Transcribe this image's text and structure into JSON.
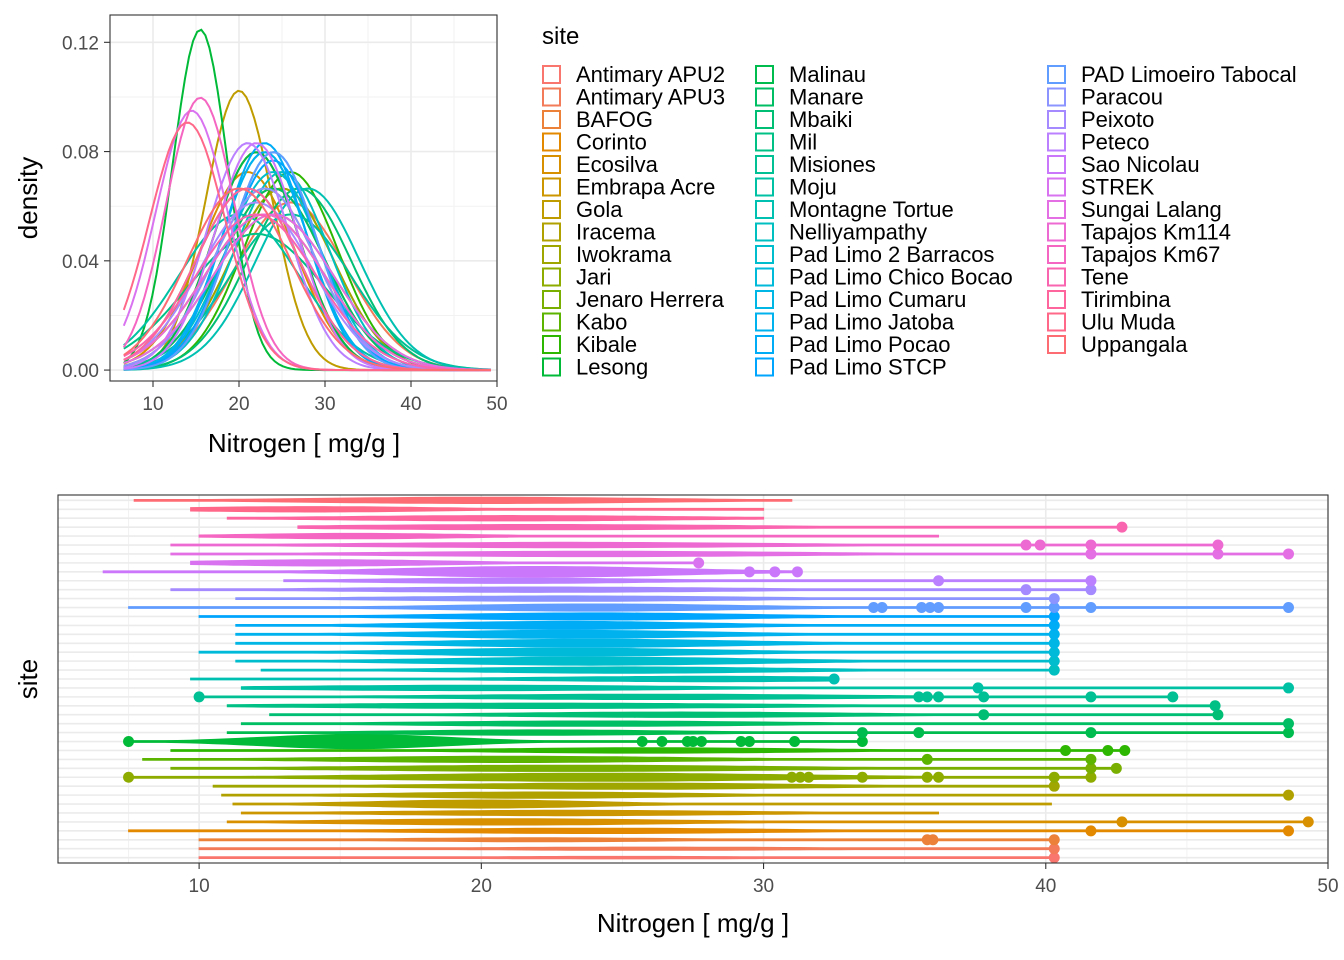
{
  "chart_data": [
    {
      "type": "line",
      "panel": "density",
      "xlabel": "Nitrogen [ mg/g ]",
      "ylabel": "density",
      "xlim": [
        5,
        50
      ],
      "ylim": [
        -0.004,
        0.13
      ],
      "x_ticks": [
        10,
        20,
        30,
        40,
        50
      ],
      "x_tick_labels": [
        "10",
        "20",
        "30",
        "40",
        "50"
      ],
      "y_ticks": [
        0.0,
        0.04,
        0.08,
        0.12
      ],
      "y_tick_labels": [
        "0.00",
        "0.04",
        "0.08",
        "0.12"
      ],
      "grid": true,
      "legend": {
        "title": "site",
        "placement": "right",
        "columns": 3,
        "entries": [
          "Antimary APU2",
          "Antimary APU3",
          "BAFOG",
          "Corinto",
          "Ecosilva",
          "Embrapa Acre",
          "Gola",
          "Iracema",
          "Iwokrama",
          "Jari",
          "Jenaro Herrera",
          "Kabo",
          "Kibale",
          "Lesong",
          "Malinau",
          "Manare",
          "Mbaiki",
          "Mil",
          "Misiones",
          "Moju",
          "Montagne Tortue",
          "Nelliyampathy",
          "Pad Limo 2 Barracos",
          "Pad Limo Chico Bocao",
          "Pad Limo Cumaru",
          "Pad Limo Jatoba",
          "Pad Limo Pocao",
          "Pad Limo STCP",
          "PAD Limoeiro Tabocal",
          "Paracou",
          "Peixoto",
          "Peteco",
          "Sao Nicolau",
          "STREK",
          "Sungai Lalang",
          "Tapajos Km114",
          "Tapajos Km67",
          "Tene",
          "Tirimbina",
          "Ulu Muda",
          "Uppangala"
        ],
        "colors": [
          "#F8766D",
          "#F37B59",
          "#EC8239",
          "#E38900",
          "#D89000",
          "#CC9600",
          "#BF9C00",
          "#B0A100",
          "#A0A600",
          "#8EAB00",
          "#78AF00",
          "#5CB300",
          "#2EB700",
          "#00BA38",
          "#00BC4F",
          "#00BE63",
          "#00BF74",
          "#00C085",
          "#00C094",
          "#00C1A3",
          "#00C0B2",
          "#00BFC0",
          "#00BDCD",
          "#00BAD9",
          "#00B6E4",
          "#00B2EE",
          "#00ACF6",
          "#00A5FD",
          "#619CFF",
          "#8B94FF",
          "#A58AFF",
          "#BA80FF",
          "#CB77FB",
          "#D973F0",
          "#E46EE3",
          "#EE6AD3",
          "#F566C2",
          "#FA65B0",
          "#FE659D",
          "#FF6889",
          "#FD6C73"
        ]
      },
      "series_params": [
        {
          "mu": 25,
          "sd": 6
        },
        {
          "mu": 26,
          "sd": 6.5
        },
        {
          "mu": 22,
          "sd": 5
        },
        {
          "mu": 24,
          "sd": 6
        },
        {
          "mu": 21,
          "sd": 5.5
        },
        {
          "mu": 23,
          "sd": 6
        },
        {
          "mu": 20,
          "sd": 3.9
        },
        {
          "mu": 22,
          "sd": 5
        },
        {
          "mu": 25,
          "sd": 6
        },
        {
          "mu": 24,
          "sd": 7
        },
        {
          "mu": 23,
          "sd": 7
        },
        {
          "mu": 21,
          "sd": 6
        },
        {
          "mu": 26,
          "sd": 5.5
        },
        {
          "mu": 15.5,
          "sd": 3.2
        },
        {
          "mu": 22,
          "sd": 5
        },
        {
          "mu": 24,
          "sd": 6
        },
        {
          "mu": 27,
          "sd": 6
        },
        {
          "mu": 22,
          "sd": 8
        },
        {
          "mu": 26,
          "sd": 7
        },
        {
          "mu": 20,
          "sd": 7
        },
        {
          "mu": 28,
          "sd": 6
        },
        {
          "mu": 25,
          "sd": 5.5
        },
        {
          "mu": 24,
          "sd": 5.5
        },
        {
          "mu": 23,
          "sd": 5
        },
        {
          "mu": 24,
          "sd": 5
        },
        {
          "mu": 23,
          "sd": 5
        },
        {
          "mu": 23,
          "sd": 4.8
        },
        {
          "mu": 24,
          "sd": 5.2
        },
        {
          "mu": 24,
          "sd": 5
        },
        {
          "mu": 23,
          "sd": 6
        },
        {
          "mu": 22,
          "sd": 6.5
        },
        {
          "mu": 21,
          "sd": 4.8
        },
        {
          "mu": 22,
          "sd": 4.8
        },
        {
          "mu": 14.5,
          "sd": 4.2
        },
        {
          "mu": 24,
          "sd": 7
        },
        {
          "mu": 23,
          "sd": 7
        },
        {
          "mu": 15.5,
          "sd": 4
        },
        {
          "mu": 22,
          "sd": 7
        },
        {
          "mu": 21,
          "sd": 6
        },
        {
          "mu": 14,
          "sd": 4.4
        },
        {
          "mu": 20,
          "sd": 6
        }
      ]
    },
    {
      "type": "violin",
      "panel": "violin",
      "xlabel": "Nitrogen [ mg/g ]",
      "ylabel": "site",
      "xlim": [
        5,
        50
      ],
      "x_ticks": [
        10,
        20,
        30,
        40,
        50
      ],
      "x_tick_labels": [
        "10",
        "20",
        "30",
        "40",
        "50"
      ],
      "y_ticks_visible": false,
      "grid": true,
      "categories_bottom_to_top": [
        "Antimary APU2",
        "Antimary APU3",
        "BAFOG",
        "Corinto",
        "Ecosilva",
        "Embrapa Acre",
        "Gola",
        "Iracema",
        "Iwokrama",
        "Jari",
        "Jenaro Herrera",
        "Kabo",
        "Kibale",
        "Lesong",
        "Malinau",
        "Manare",
        "Mbaiki",
        "Mil",
        "Misiones",
        "Moju",
        "Montagne Tortue",
        "Nelliyampathy",
        "Pad Limo 2 Barracos",
        "Pad Limo Chico Bocao",
        "Pad Limo Cumaru",
        "Pad Limo Jatoba",
        "Pad Limo Pocao",
        "Pad Limo STCP",
        "PAD Limoeiro Tabocal",
        "Paracou",
        "Peixoto",
        "Peteco",
        "Sao Nicolau",
        "STREK",
        "Sungai Lalang",
        "Tapajos Km114",
        "Tapajos Km67",
        "Tene",
        "Tirimbina",
        "Ulu Muda",
        "Uppangala"
      ],
      "sites": [
        {
          "lo": 10,
          "hi": 40.3,
          "w": 0.14,
          "pts": [
            40.3
          ]
        },
        {
          "lo": 10,
          "hi": 40.3,
          "w": 0.18,
          "pts": [
            40.3
          ]
        },
        {
          "lo": 10,
          "hi": 40.3,
          "w": 0.22,
          "pts": [
            35.8,
            36,
            40.3
          ]
        },
        {
          "lo": 7.5,
          "hi": 48.6,
          "w": 0.3,
          "pts": [
            41.6,
            48.6
          ]
        },
        {
          "lo": 11,
          "hi": 49.3,
          "w": 0.35,
          "pts": [
            42.7,
            49.3
          ]
        },
        {
          "lo": 11.5,
          "hi": 36.2,
          "w": 0.3,
          "pts": []
        },
        {
          "lo": 11.2,
          "hi": 40.2,
          "w": 0.45,
          "pts": []
        },
        {
          "lo": 10.8,
          "hi": 48.6,
          "w": 0.35,
          "pts": [
            48.6
          ]
        },
        {
          "lo": 10.5,
          "hi": 40.3,
          "w": 0.35,
          "pts": [
            40.3
          ]
        },
        {
          "lo": 7.5,
          "hi": 41.6,
          "w": 0.45,
          "pts": [
            7.5,
            31,
            31.3,
            31.6,
            33.5,
            35.8,
            36.2,
            40.3,
            41.6
          ]
        },
        {
          "lo": 9,
          "hi": 42.5,
          "w": 0.35,
          "pts": [
            41.6,
            42.5
          ]
        },
        {
          "lo": 8,
          "hi": 41.6,
          "w": 0.35,
          "pts": [
            35.8,
            41.6
          ]
        },
        {
          "lo": 9,
          "hi": 42.8,
          "w": 0.3,
          "pts": [
            40.7,
            42.2,
            42.8
          ]
        },
        {
          "lo": 7.5,
          "hi": 33.5,
          "w": 0.8,
          "pts": [
            7.5,
            25.7,
            26.4,
            27.3,
            27.5,
            27.8,
            29.2,
            29.5,
            31.1,
            33.5
          ]
        },
        {
          "lo": 11,
          "hi": 48.6,
          "w": 0.3,
          "pts": [
            33.5,
            35.5,
            41.6,
            48.6
          ]
        },
        {
          "lo": 11.5,
          "hi": 48.6,
          "w": 0.3,
          "pts": [
            48.6
          ]
        },
        {
          "lo": 12.5,
          "hi": 46.1,
          "w": 0.3,
          "pts": [
            37.8,
            46.1
          ]
        },
        {
          "lo": 11,
          "hi": 46,
          "w": 0.3,
          "pts": [
            46
          ]
        },
        {
          "lo": 10,
          "hi": 44.5,
          "w": 0.3,
          "pts": [
            10,
            35.5,
            35.8,
            36.2,
            37.8,
            41.6,
            44.5
          ]
        },
        {
          "lo": 11.5,
          "hi": 48.6,
          "w": 0.3,
          "pts": [
            37.6,
            48.6
          ]
        },
        {
          "lo": 9.7,
          "hi": 32.5,
          "w": 0.3,
          "pts": [
            32.5
          ]
        },
        {
          "lo": 12.2,
          "hi": 40.3,
          "w": 0.35,
          "pts": [
            40.3
          ]
        },
        {
          "lo": 11.3,
          "hi": 40.3,
          "w": 0.45,
          "pts": [
            40.3
          ]
        },
        {
          "lo": 10,
          "hi": 40.3,
          "w": 0.45,
          "pts": [
            40.3
          ]
        },
        {
          "lo": 11.3,
          "hi": 40.3,
          "w": 0.45,
          "pts": [
            40.3
          ]
        },
        {
          "lo": 11.3,
          "hi": 40.3,
          "w": 0.45,
          "pts": [
            40.3
          ]
        },
        {
          "lo": 11.3,
          "hi": 40.3,
          "w": 0.45,
          "pts": [
            40.3
          ]
        },
        {
          "lo": 10,
          "hi": 40.3,
          "w": 0.4,
          "pts": [
            40.3
          ]
        },
        {
          "lo": 7.5,
          "hi": 48.6,
          "w": 0.4,
          "pts": [
            33.9,
            34.2,
            35.6,
            35.9,
            36.2,
            39.3,
            40.3,
            41.6,
            48.6
          ]
        },
        {
          "lo": 11.3,
          "hi": 40.3,
          "w": 0.3,
          "pts": [
            40.3
          ]
        },
        {
          "lo": 9,
          "hi": 41.6,
          "w": 0.3,
          "pts": [
            39.3,
            41.6
          ]
        },
        {
          "lo": 13,
          "hi": 41.6,
          "w": 0.3,
          "pts": [
            36.2,
            41.6
          ]
        },
        {
          "lo": 6.6,
          "hi": 31.2,
          "w": 0.6,
          "pts": [
            29.5,
            30.4,
            31.2
          ]
        },
        {
          "lo": 9.7,
          "hi": 27.7,
          "w": 0.35,
          "pts": [
            27.7
          ]
        },
        {
          "lo": 9,
          "hi": 48.6,
          "w": 0.3,
          "pts": [
            41.6,
            46.1,
            48.6
          ]
        },
        {
          "lo": 9,
          "hi": 46.1,
          "w": 0.3,
          "pts": [
            39.3,
            39.8,
            41.6,
            46.1
          ]
        },
        {
          "lo": 10,
          "hi": 36.2,
          "w": 0.3,
          "pts": []
        },
        {
          "lo": 13.5,
          "hi": 42.7,
          "w": 0.3,
          "pts": [
            42.7
          ]
        },
        {
          "lo": 11,
          "hi": 30,
          "w": 0.3,
          "pts": []
        },
        {
          "lo": 9.7,
          "hi": 30,
          "w": 0.3,
          "pts": []
        },
        {
          "lo": 7.7,
          "hi": 31,
          "w": 0.35,
          "pts": []
        }
      ]
    }
  ]
}
